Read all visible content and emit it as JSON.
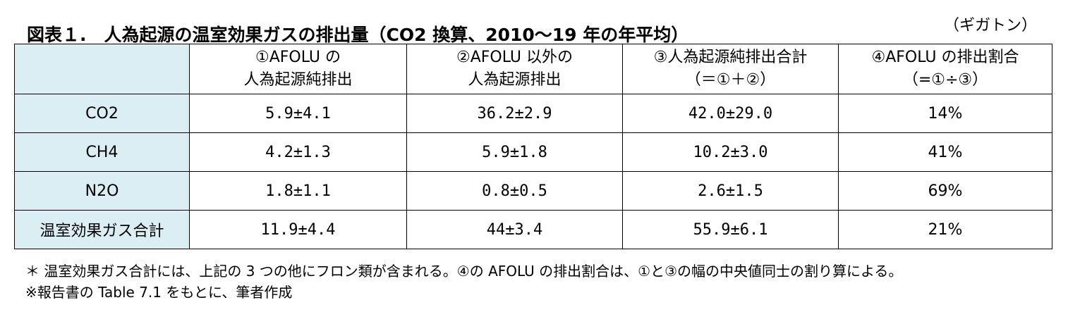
{
  "title": "図表１.　人為起源の温室効果ガスの排出量（CO2 換算、2010～19 年の年平均）",
  "unit": "（ギガトン）",
  "table": {
    "columns": [
      {
        "line1": "①AFOLU の",
        "line2": "人為起源純排出"
      },
      {
        "line1": "②AFOLU 以外の",
        "line2": "人為起源排出"
      },
      {
        "line1": "③人為起源純排出合計",
        "line2": "（＝①＋②）"
      },
      {
        "line1": "④AFOLU の排出割合",
        "line2": "（=①÷③）"
      }
    ],
    "rows": [
      {
        "label": "CO2",
        "c1": "5.9±4.1",
        "c2": "36.2±2.9",
        "c3": "42.0±29.0",
        "c4": "14%"
      },
      {
        "label": "CH4",
        "c1": "4.2±1.3",
        "c2": "5.9±1.8",
        "c3": "10.2±3.0",
        "c4": "41%"
      },
      {
        "label": "N2O",
        "c1": "1.8±1.1",
        "c2": "0.8±0.5",
        "c3": "2.6±1.5",
        "c4": "69%"
      },
      {
        "label": "温室効果ガス合計",
        "c1": "11.9±4.4",
        "c2": "44±3.4",
        "c3": "55.9±6.1",
        "c4": "21%"
      }
    ]
  },
  "notes": [
    "＊ 温室効果ガス合計には、上記の 3 つの他にフロン類が含まれる。④の AFOLU の排出割合は、①と③の幅の中央値同士の割り算による。",
    "※報告書の Table 7.1 をもとに、筆者作成"
  ]
}
